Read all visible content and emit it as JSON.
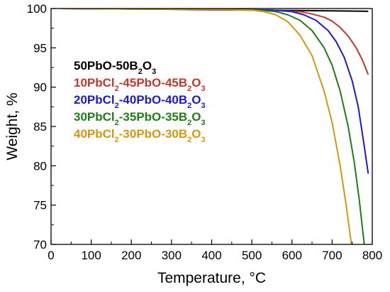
{
  "chart_data": {
    "type": "line",
    "xlabel": "Temperature, °C",
    "ylabel": "Weight, %",
    "xlim": [
      0,
      800
    ],
    "ylim": [
      70,
      100
    ],
    "xticks": [
      0,
      100,
      200,
      300,
      400,
      500,
      600,
      700,
      800
    ],
    "yticks": [
      70,
      75,
      80,
      85,
      90,
      95,
      100
    ],
    "grid": false,
    "legend_placement": "left",
    "series": [
      {
        "name": "50PbO-50B2O3",
        "legend_parts": [
          {
            "t": "50PbO-50B"
          },
          {
            "t": "2",
            "sub": true
          },
          {
            "t": "O"
          },
          {
            "t": "3",
            "sub": true
          }
        ],
        "color": "#000000",
        "x": [
          25,
          100,
          200,
          300,
          400,
          500,
          600,
          700,
          790
        ],
        "y": [
          100.0,
          100.0,
          99.95,
          99.9,
          99.85,
          99.8,
          99.75,
          99.7,
          99.65
        ]
      },
      {
        "name": "10PbCl2-45PbO-45B2O3",
        "legend_parts": [
          {
            "t": "10PbCl"
          },
          {
            "t": "2",
            "sub": true
          },
          {
            "t": "-45PbO-45B"
          },
          {
            "t": "2",
            "sub": true
          },
          {
            "t": "O"
          },
          {
            "t": "3",
            "sub": true
          }
        ],
        "color": "#c0392b",
        "x": [
          25,
          200,
          400,
          550,
          620,
          650,
          680,
          700,
          720,
          740,
          760,
          775,
          790
        ],
        "y": [
          100.0,
          99.95,
          99.9,
          99.8,
          99.6,
          99.3,
          98.9,
          98.4,
          97.6,
          96.5,
          95.0,
          93.5,
          91.6
        ]
      },
      {
        "name": "20PbCl2-40PbO-40B2O3",
        "legend_parts": [
          {
            "t": "20PbCl"
          },
          {
            "t": "2",
            "sub": true
          },
          {
            "t": "-40PbO-40B"
          },
          {
            "t": "2",
            "sub": true
          },
          {
            "t": "O"
          },
          {
            "t": "3",
            "sub": true
          }
        ],
        "color": "#1a1ad0",
        "x": [
          25,
          200,
          400,
          550,
          600,
          630,
          660,
          690,
          710,
          730,
          750,
          765,
          780,
          790
        ],
        "y": [
          100.0,
          99.95,
          99.9,
          99.8,
          99.6,
          99.2,
          98.5,
          97.2,
          95.8,
          93.8,
          90.8,
          87.5,
          82.5,
          79.0
        ]
      },
      {
        "name": "30PbCl2-35PbO-35B2O3",
        "legend_parts": [
          {
            "t": "30PbCl"
          },
          {
            "t": "2",
            "sub": true
          },
          {
            "t": "-35PbO-35B"
          },
          {
            "t": "2",
            "sub": true
          },
          {
            "t": "O"
          },
          {
            "t": "3",
            "sub": true
          }
        ],
        "color": "#1e7d14",
        "x": [
          25,
          200,
          400,
          520,
          560,
          590,
          620,
          650,
          680,
          700,
          720,
          740,
          755,
          768,
          780
        ],
        "y": [
          100.0,
          99.95,
          99.9,
          99.8,
          99.6,
          99.2,
          98.5,
          97.2,
          95.0,
          92.8,
          89.5,
          85.0,
          80.5,
          75.5,
          70.0
        ]
      },
      {
        "name": "40PbCl2-30PbO-30B2O3",
        "legend_parts": [
          {
            "t": "40PbCl"
          },
          {
            "t": "2",
            "sub": true
          },
          {
            "t": "-30PbO-30B"
          },
          {
            "t": "2",
            "sub": true
          },
          {
            "t": "O"
          },
          {
            "t": "3",
            "sub": true
          }
        ],
        "color": "#d4980f",
        "x": [
          25,
          200,
          400,
          500,
          530,
          560,
          590,
          620,
          650,
          680,
          700,
          720,
          735,
          748
        ],
        "y": [
          100.0,
          99.95,
          99.9,
          99.8,
          99.6,
          99.2,
          98.3,
          96.6,
          94.0,
          89.5,
          85.5,
          80.0,
          75.0,
          70.0
        ]
      }
    ]
  }
}
